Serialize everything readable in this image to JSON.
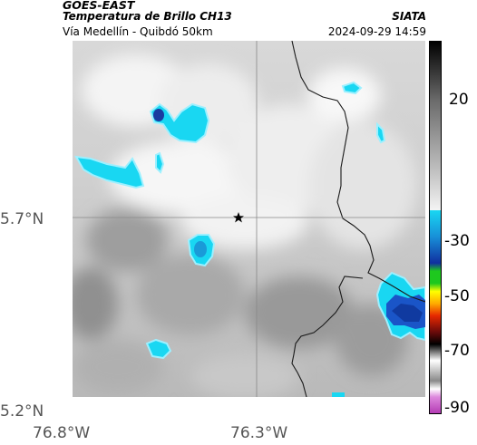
{
  "header": {
    "satellite": "GOES-EAST",
    "product": "Temperatura de Brillo CH13",
    "route": "Vía Medellín - Quibdó 50km",
    "source": "SIATA",
    "timestamp": "2024-09-29 14:59"
  },
  "axes": {
    "lat_labels": [
      "5.7°N",
      "5.2°N"
    ],
    "lon_labels": [
      "76.8°W",
      "76.3°W"
    ]
  },
  "marker": {
    "icon": "star-icon"
  },
  "colorbar": {
    "labels": [
      "20",
      "-30",
      "-50",
      "-70",
      "-90"
    ],
    "colors": {
      "warm_top": "#000000",
      "warm_bottom": "#f0f0f0",
      "cyan": "#19d7f2",
      "blue": "#1030a0",
      "green": "#1ec81e",
      "yellow": "#ffff00",
      "red": "#e62800",
      "magenta": "#b43cb4"
    }
  }
}
